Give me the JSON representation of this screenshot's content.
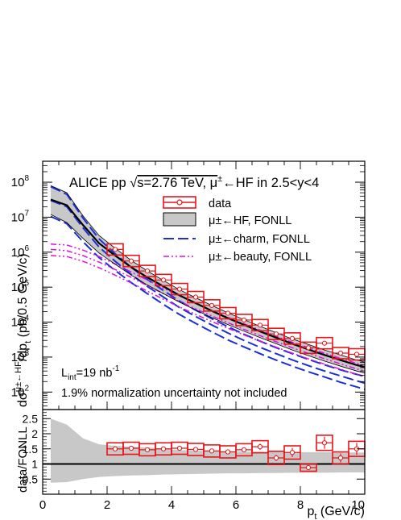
{
  "chart_data": [
    {
      "type": "line",
      "panel": "top",
      "title": "ALICE pp √s=2.76 TeV, μ±←HF in 2.5<y<4",
      "title_parts": {
        "a": "ALICE pp ",
        "sqrt": "√",
        "b": "s=2.76 TeV, μ",
        "pm": "±",
        "c": "←HF in 2.5<y<4"
      },
      "ylabel": "dσ^{μ±←HF}/dp_t (pb/0.5 GeV/c)",
      "ylabel_parts": {
        "d": "dσ",
        "sup": "μ±←HF",
        "mid": "/dp",
        "sub": "t",
        "tail": " (pb/0.5 GeV/c)"
      },
      "xlim": [
        0,
        10
      ],
      "ylim_log10": [
        1.5,
        8.6
      ],
      "log_y": true,
      "yticks": [
        {
          "exp": 2,
          "base": "10",
          "sup": "2"
        },
        {
          "exp": 3,
          "base": "10",
          "sup": "3"
        },
        {
          "exp": 4,
          "base": "10",
          "sup": "4"
        },
        {
          "exp": 5,
          "base": "10",
          "sup": "5"
        },
        {
          "exp": 6,
          "base": "10",
          "sup": "6"
        },
        {
          "exp": 7,
          "base": "10",
          "sup": "7"
        },
        {
          "exp": 8,
          "base": "10",
          "sup": "8"
        }
      ],
      "legend_position": "top-right",
      "legend": [
        {
          "key": "data",
          "label": "data",
          "style": "box-marker",
          "color": "#e8151a"
        },
        {
          "key": "fonll",
          "label": "μ±←HF, FONLL",
          "style": "band",
          "color": "#c8c8c8"
        },
        {
          "key": "charm",
          "label": "μ±←charm, FONLL",
          "style": "dash",
          "color": "#1a2fd6"
        },
        {
          "key": "beauty",
          "label": "μ±←beauty, FONLL",
          "style": "dashdot",
          "color": "#e010e0"
        }
      ],
      "annotations": {
        "lumi": {
          "pre": "L",
          "sub": "int",
          "post": "=19 nb",
          "sup": "-1"
        },
        "norm": "1.9% normalization uncertainty not included"
      },
      "series": [
        {
          "key": "data",
          "x": [
            2.25,
            2.75,
            3.25,
            3.75,
            4.25,
            4.75,
            5.25,
            5.75,
            6.25,
            6.75,
            7.25,
            7.75,
            8.25,
            8.75,
            9.25,
            9.75
          ],
          "y": [
            1200000.0,
            560000.0,
            290000.0,
            160000.0,
            88000.0,
            52000.0,
            30000.0,
            18000.0,
            11500.0,
            8200.0,
            4600.0,
            3400.0,
            1850.0,
            2500.0,
            1300.0,
            1200.0
          ],
          "dx": 0.25
        },
        {
          "key": "fonll",
          "x": [
            0.25,
            0.75,
            1.25,
            1.75,
            2.25,
            2.75,
            3.25,
            3.75,
            4.25,
            4.75,
            5.25,
            5.75,
            6.25,
            6.75,
            7.25,
            7.75,
            8.25,
            8.75,
            9.25,
            9.75,
            10.0
          ],
          "y": [
            32000000.0,
            22000000.0,
            6000000.0,
            1800000.0,
            800000.0,
            370000.0,
            190000.0,
            105000.0,
            58000.0,
            35000.0,
            21000.0,
            13000.0,
            8400.0,
            5400.0,
            3600.0,
            2400.0,
            1650.0,
            1150.0,
            820.0,
            590.0,
            520.0
          ],
          "upper": [
            80000000.0,
            50000000.0,
            11000000.0,
            3000000.0,
            1300000.0,
            580000.0,
            290000.0,
            155000.0,
            84000.0,
            50000.0,
            30000.0,
            18500.0,
            11800.0,
            7600.0,
            5000.0,
            3300.0,
            2300.0,
            1600.0,
            1150.0,
            820.0,
            720.0
          ],
          "lower": [
            12000000.0,
            7000000.0,
            2500000.0,
            950000.0,
            450000.0,
            220000.0,
            115000.0,
            65000.0,
            37000.0,
            22000.0,
            13500.0,
            8500.0,
            5500.0,
            3600.0,
            2400.0,
            1600.0,
            1100.0,
            770.0,
            550.0,
            400.0,
            350.0
          ]
        },
        {
          "key": "charm",
          "x": [
            0.25,
            0.75,
            1.25,
            1.75,
            2.25,
            2.75,
            3.25,
            3.75,
            4.25,
            4.75,
            5.25,
            5.75,
            6.25,
            6.75,
            7.25,
            7.75,
            8.25,
            8.75,
            9.25,
            9.75,
            10.0
          ],
          "y": [
            30000000.0,
            20000000.0,
            5000000.0,
            1400000.0,
            550000.0,
            230000.0,
            105000.0,
            52000.0,
            26000.0,
            14500.0,
            8300.0,
            4900.0,
            3000.0,
            1900.0,
            1250.0,
            830.0,
            570.0,
            400.0,
            290.0,
            210.0,
            180.0
          ],
          "upper": [
            75000000.0,
            45000000.0,
            9500000.0,
            2400000.0,
            900000.0,
            370000.0,
            165000.0,
            80000.0,
            40000.0,
            22000.0,
            12500.0,
            7400.0,
            4500.0,
            2850.0,
            1850.0,
            1250.0,
            860.0,
            600.0,
            430.0,
            320.0,
            280.0
          ],
          "lower": [
            10500000.0,
            6500000.0,
            2000000.0,
            700000.0,
            300000.0,
            135000.0,
            65000.0,
            32000.0,
            16500.0,
            9200.0,
            5300.0,
            3100.0,
            1950.0,
            1250.0,
            820.0,
            550.0,
            380.0,
            270.0,
            190.0,
            140.0,
            120.0
          ]
        },
        {
          "key": "beauty",
          "x": [
            0.25,
            0.75,
            1.25,
            1.75,
            2.25,
            2.75,
            3.25,
            3.75,
            4.25,
            4.75,
            5.25,
            5.75,
            6.25,
            6.75,
            7.25,
            7.75,
            8.25,
            8.75,
            9.25,
            9.75,
            10.0
          ],
          "y": [
            1200000.0,
            1100000.0,
            800000.0,
            520000.0,
            320000.0,
            190000.0,
            110000.0,
            65000.0,
            39000.0,
            24000.0,
            15000.0,
            9600.0,
            6200.0,
            4100.0,
            2750.0,
            1850.0,
            1280.0,
            900.0,
            640.0,
            460.0,
            400.0
          ],
          "upper": [
            1700000.0,
            1600000.0,
            1150000.0,
            750000.0,
            460000.0,
            270000.0,
            160000.0,
            93000.0,
            56000.0,
            34500.0,
            21500.0,
            13700.0,
            8900.0,
            5900.0,
            3950.0,
            2650.0,
            1840.0,
            1290.0,
            920.0,
            660.0,
            570.0
          ],
          "lower": [
            800000.0,
            750000.0,
            550000.0,
            360000.0,
            220000.0,
            132000.0,
            77000.0,
            45000.0,
            27000.0,
            16600.0,
            10400.0,
            6700.0,
            4300.0,
            2850.0,
            1920.0,
            1300.0,
            890.0,
            630.0,
            450.0,
            320.0,
            280.0
          ]
        }
      ]
    },
    {
      "type": "scatter",
      "panel": "bottom",
      "ylabel": "data/FONLL",
      "xlabel": "p_t (GeV/c)",
      "xlabel_parts": {
        "p": "p",
        "sub": "t",
        "tail": " (GeV/c)"
      },
      "xlim": [
        0,
        10
      ],
      "ylim": [
        0,
        2.8
      ],
      "xticks": [
        "0",
        "2",
        "4",
        "6",
        "8",
        "10"
      ],
      "yticks": [
        "0.5",
        "1",
        "1.5",
        "2",
        "2.5"
      ],
      "reference_line": 1,
      "band": {
        "x": [
          0.25,
          0.75,
          1.25,
          1.75,
          2.25,
          2.75,
          3.25,
          3.75,
          4.25,
          4.75,
          5.25,
          5.75,
          6.25,
          6.75,
          7.25,
          7.75,
          8.25,
          8.75,
          9.25,
          9.75,
          10.0
        ],
        "upper": [
          2.5,
          2.3,
          1.85,
          1.65,
          1.6,
          1.57,
          1.55,
          1.5,
          1.46,
          1.44,
          1.43,
          1.42,
          1.41,
          1.4,
          1.4,
          1.39,
          1.39,
          1.39,
          1.38,
          1.38,
          1.38
        ],
        "lower": [
          0.38,
          0.4,
          0.5,
          0.57,
          0.6,
          0.62,
          0.63,
          0.65,
          0.66,
          0.67,
          0.68,
          0.69,
          0.69,
          0.7,
          0.7,
          0.71,
          0.71,
          0.71,
          0.72,
          0.72,
          0.72
        ]
      },
      "points": {
        "x": [
          2.25,
          2.75,
          3.25,
          3.75,
          4.25,
          4.75,
          5.25,
          5.75,
          6.25,
          6.75,
          7.25,
          7.75,
          8.25,
          8.75,
          9.25,
          9.75
        ],
        "y": [
          1.5,
          1.52,
          1.47,
          1.5,
          1.52,
          1.48,
          1.43,
          1.4,
          1.47,
          1.57,
          1.2,
          1.38,
          0.88,
          1.7,
          1.2,
          1.5
        ],
        "syst": [
          0.2,
          0.2,
          0.2,
          0.2,
          0.2,
          0.2,
          0.2,
          0.2,
          0.2,
          0.2,
          0.22,
          0.22,
          0.12,
          0.25,
          0.2,
          0.25
        ],
        "stat": [
          0.05,
          0.05,
          0.05,
          0.05,
          0.05,
          0.05,
          0.05,
          0.05,
          0.05,
          0.1,
          0.1,
          0.15,
          0.05,
          0.2,
          0.15,
          0.2
        ]
      }
    }
  ]
}
